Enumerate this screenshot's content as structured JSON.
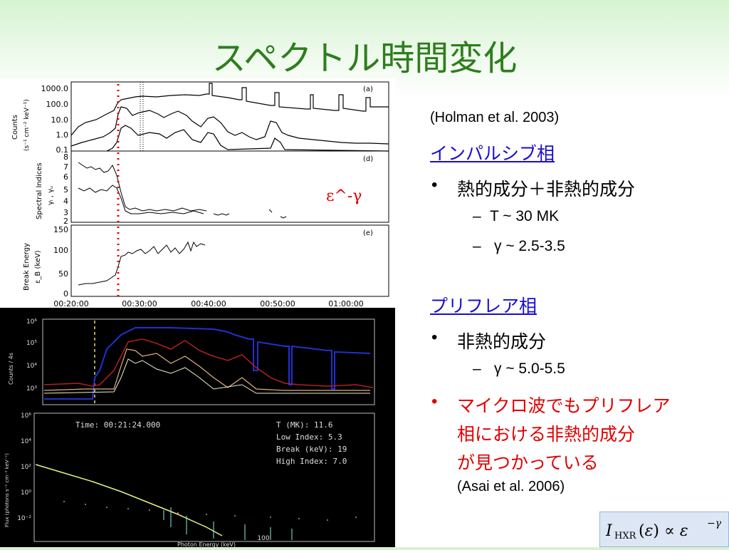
{
  "slide": {
    "title": "スペクトル時間変化",
    "citation1": "(Holman et al. 2003)",
    "impulsive_heading": "インパルシブ相",
    "impulsive_bullet": "熱的成分＋非熱的成分",
    "impulsive_sub1": "T ~ 30 MK",
    "impulsive_sub2": "γ ~ 2.5-3.5",
    "preflare_heading": "プリフレア相",
    "preflare_bullet": "非熱的成分",
    "preflare_sub1": "γ ~ 5.0-5.5",
    "red_bullet_line1": "マイクロ波でもプリフレア",
    "red_bullet_line2": "相における非熱的成分",
    "red_bullet_line3": "が見つかっている",
    "citation2": "(Asai et al. 2006)",
    "formula": "I_HXR(ε) ∝ ε^−γ",
    "dash": "–",
    "bullet": "•"
  },
  "top_figure": {
    "panel_a": {
      "label": "(a)",
      "ylabel": "Counts\n(s⁻¹ cm⁻² keV⁻¹)",
      "yticks": [
        "1000.0",
        "100.0",
        "10.0",
        "1.0",
        "0.1"
      ]
    },
    "panel_d": {
      "label": "(d)",
      "ylabel": "Spectral Indices",
      "ylabel2": "γₗ , γᵤ",
      "yticks": [
        "8",
        "7",
        "6",
        "5",
        "4",
        "3",
        "2"
      ]
    },
    "panel_e": {
      "label": "(e)",
      "ylabel": "Break Energy",
      "ylabel2": "ε_B (keV)",
      "yticks": [
        "150",
        "100",
        "50",
        "0"
      ]
    },
    "xticks": [
      "00:20:00",
      "00:30:00",
      "00:40:00",
      "00:50:00",
      "01:00:00"
    ],
    "annotation": "ε^-γ"
  },
  "bottom_figure": {
    "lightcurve": {
      "ylabel": "Counts / 4s",
      "yticks": [
        "10⁶",
        "10⁵",
        "10⁴",
        "10³"
      ]
    },
    "spectrum": {
      "time": "Time: 00:21:24.000",
      "params": [
        "T (MK): 11.6",
        "Low Index:  5.3",
        "Break (keV): 19",
        "High Index: 7.0"
      ],
      "ylabel": "Flux (photons s⁻¹ cm⁻² keV⁻¹)",
      "yticks": [
        "10⁶",
        "10⁴",
        "10²",
        "10⁰",
        "10⁻²"
      ],
      "xlabel": "Photon Energy (keV)",
      "xtick": "100"
    }
  },
  "colors": {
    "title": "#2e7d1e",
    "link": "#1a0dcc",
    "red": "#e00000",
    "formula_bg": "#dde6f5"
  }
}
